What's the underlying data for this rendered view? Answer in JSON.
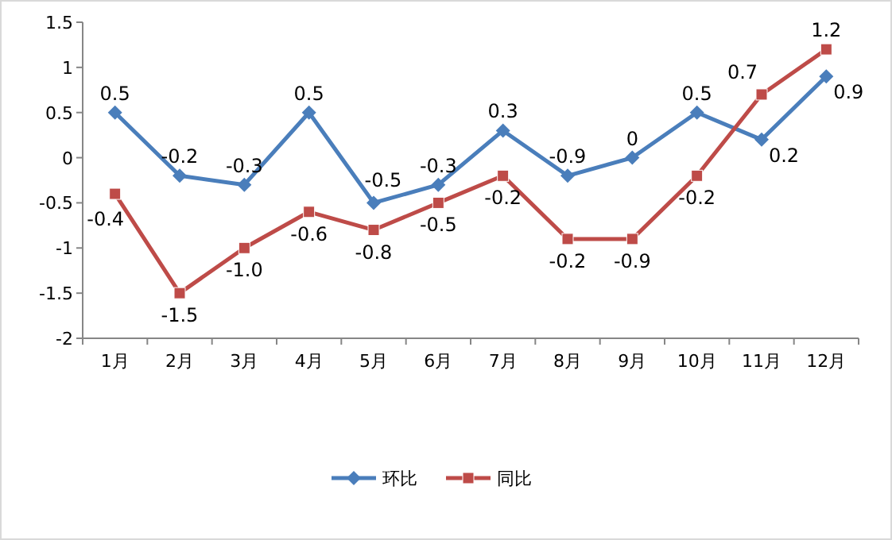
{
  "chart_data": {
    "type": "line",
    "categories": [
      "1月",
      "2月",
      "3月",
      "4月",
      "5月",
      "6月",
      "7月",
      "8月",
      "9月",
      "10月",
      "11月",
      "12月"
    ],
    "series": [
      {
        "name": "环比",
        "color": "#4a7ebb",
        "marker": "diamond",
        "values": [
          0.5,
          -0.2,
          -0.3,
          0.5,
          -0.5,
          -0.3,
          0.3,
          -0.2,
          0,
          0.5,
          0.2,
          0.9
        ],
        "value_labels": [
          "0.5",
          "-0.2",
          "-0.3",
          "0.5",
          "-0.5",
          "-0.3",
          "0.3",
          null,
          "0",
          "0.5",
          "0.2",
          "0.9"
        ]
      },
      {
        "name": "同比",
        "color": "#be4b48",
        "marker": "square",
        "values": [
          -0.4,
          -1.5,
          -1.0,
          -0.6,
          -0.8,
          -0.5,
          -0.2,
          -0.9,
          -0.9,
          -0.2,
          0.7,
          1.2
        ],
        "value_labels": [
          "-0.4",
          "-1.5",
          "-1.0",
          "-0.6",
          "-0.8",
          "-0.5",
          "-0.2",
          null,
          "-0.9",
          "-0.2",
          "0.7",
          "1.2"
        ]
      }
    ],
    "annotations": [
      {
        "text": "-0.9",
        "x": "8月",
        "y": -0.2
      },
      {
        "text": "-0.2",
        "x": "8月",
        "y": -0.9
      }
    ],
    "ylim": [
      -2,
      1.5
    ],
    "yticks": [
      -2,
      -1.5,
      -1,
      -0.5,
      0,
      0.5,
      1,
      1.5
    ],
    "grid": false,
    "legend": "bottom",
    "line_style": "solid"
  }
}
